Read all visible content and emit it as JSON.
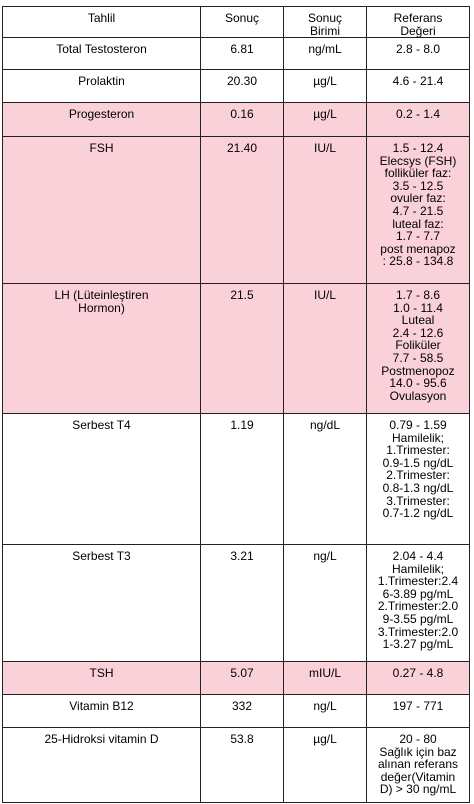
{
  "header": [
    [
      "Tahlil"
    ],
    [
      "Sonuç"
    ],
    [
      "Sonuç",
      "Birimi"
    ],
    [
      "Referans",
      "Değeri"
    ]
  ],
  "rows": [
    {
      "name": [
        "Total Testosteron"
      ],
      "result": "6.81",
      "unit": "ng/mL",
      "reference": [
        "2.8 - 8.0"
      ],
      "highlighted": false
    },
    {
      "name": [
        "Prolaktin"
      ],
      "result": "20.30",
      "unit": "µg/L",
      "reference": [
        "4.6 - 21.4"
      ],
      "highlighted": false
    },
    {
      "name": [
        "Progesteron"
      ],
      "result": "0.16",
      "unit": "µg/L",
      "reference": [
        "0.2 - 1.4"
      ],
      "highlighted": true
    },
    {
      "name": [
        "FSH"
      ],
      "result": "21.40",
      "unit": "IU/L",
      "reference": [
        "1.5 - 12.4",
        "Elecsys (FSH)",
        "folliküler faz:",
        "3.5 - 12.5",
        "ovuler faz:",
        "4.7 - 21.5",
        "luteal faz:",
        "1.7 - 7.7",
        "post menapoz",
        ": 25.8 - 134.8"
      ],
      "highlighted": true
    },
    {
      "name": [
        "LH (Lüteinleştiren",
        "Hormon)"
      ],
      "result": "21.5",
      "unit": "IU/L",
      "reference": [
        "1.7 - 8.6",
        "1.0 - 11.4",
        "Luteal",
        "2.4 - 12.6",
        "Foliküler",
        "7.7 - 58.5",
        "Postmenopoz",
        "14.0 - 95.6",
        "Ovulasyon"
      ],
      "highlighted": true
    },
    {
      "name": [
        "Serbest T4"
      ],
      "result": "1.19",
      "unit": "ng/dL",
      "reference": [
        "0.79 - 1.59",
        "Hamilelik;",
        "1.Trimester:",
        "0.9-1.5 ng/dL",
        "2.Trimester:",
        "0.8-1.3 ng/dL",
        "3.Trimester:",
        "0.7-1.2 ng/dL"
      ],
      "highlighted": false
    },
    {
      "name": [
        "Serbest T3"
      ],
      "result": "3.21",
      "unit": "ng/L",
      "reference": [
        "2.04 - 4.4",
        "Hamilelik;",
        "1.Trimester:2.4",
        "6-3.89 pg/mL",
        "2.Trimester:2.0",
        "9-3.55 pg/mL",
        "3.Trimester:2.0",
        "1-3.27 pg/mL"
      ],
      "highlighted": false
    },
    {
      "name": [
        "TSH"
      ],
      "result": "5.07",
      "unit": "mIU/L",
      "reference": [
        "0.27 - 4.8"
      ],
      "highlighted": true
    },
    {
      "name": [
        "Vitamin B12"
      ],
      "result": "332",
      "unit": "ng/L",
      "reference": [
        "197 - 771"
      ],
      "highlighted": false
    },
    {
      "name": [
        "25-Hidroksi vitamin D"
      ],
      "result": "53.8",
      "unit": "µg/L",
      "reference": [
        "20 - 80",
        "Sağlık için baz",
        "alınan referans",
        "değer(Vitamin",
        "D) > 30 ng/mL"
      ],
      "highlighted": false
    }
  ]
}
